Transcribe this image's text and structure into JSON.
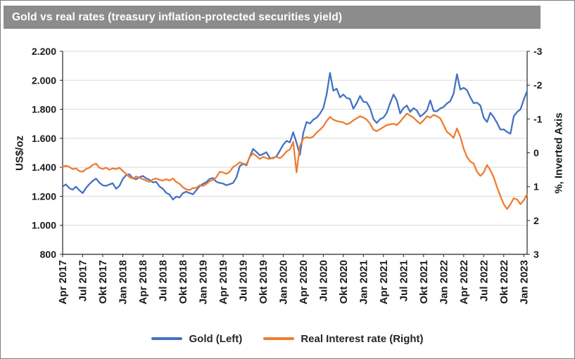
{
  "chart_data": {
    "type": "line",
    "title": "Gold vs real rates (treasury inflation-protected securities yield)",
    "title_bar_color": "#8c8c8c",
    "grid": true,
    "legend": {
      "position": "bottom"
    },
    "left_axis": {
      "label": "US$/oz",
      "min": 800,
      "max": 2200,
      "tick_values": [
        2200,
        2000,
        1800,
        1600,
        1400,
        1200,
        1000,
        800
      ],
      "tick_labels": [
        "2.200",
        "2.000",
        "1.800",
        "1.600",
        "1.400",
        "1.200",
        "1.000",
        "800"
      ]
    },
    "right_axis": {
      "label": "%, Inverted Axis",
      "inverted": true,
      "top_value": -3,
      "bottom_value": 3,
      "tick_values": [
        -3,
        -2,
        -1,
        0,
        1,
        2,
        3
      ],
      "tick_labels": [
        "-3",
        "-2",
        "-1",
        "0",
        "1",
        "2",
        "3"
      ]
    },
    "x_axis": {
      "start": "Apr 2017",
      "end": "Jan 2023",
      "tick_step_months": 3,
      "months_span": 69.5,
      "points_per_month": 2,
      "tick_labels": [
        "Apr 2017",
        "Jul 2017",
        "Okt 2017",
        "Jan 2018",
        "Apr 2018",
        "Jul 2018",
        "Okt 2018",
        "Jan 2019",
        "Apr 2019",
        "Jul 2019",
        "Okt 2019",
        "Jan 2020",
        "Apr 2020",
        "Jul 2020",
        "Okt 2020",
        "Jan 2021",
        "Apr 2021",
        "Jul 2021",
        "Okt 2021",
        "Jan 2022",
        "Apr 2022",
        "Jul 2022",
        "Okt 2022",
        "Jan 2023"
      ]
    },
    "series": [
      {
        "id": "gold",
        "name": "Gold (Left)",
        "axis": "left",
        "color": "#4472C4",
        "values": [
          1268,
          1282,
          1256,
          1246,
          1266,
          1242,
          1222,
          1258,
          1284,
          1306,
          1322,
          1294,
          1276,
          1272,
          1282,
          1290,
          1252,
          1272,
          1320,
          1346,
          1352,
          1324,
          1318,
          1332,
          1340,
          1324,
          1314,
          1296,
          1300,
          1268,
          1252,
          1224,
          1212,
          1178,
          1198,
          1192,
          1222,
          1232,
          1222,
          1214,
          1242,
          1270,
          1286,
          1298,
          1320,
          1326,
          1300,
          1292,
          1288,
          1276,
          1284,
          1292,
          1330,
          1408,
          1424,
          1414,
          1474,
          1526,
          1506,
          1482,
          1492,
          1504,
          1464,
          1462,
          1476,
          1514,
          1556,
          1582,
          1572,
          1642,
          1568,
          1486,
          1636,
          1712,
          1702,
          1728,
          1742,
          1770,
          1808,
          1902,
          2052,
          1928,
          1942,
          1882,
          1902,
          1878,
          1872,
          1804,
          1842,
          1892,
          1852,
          1848,
          1808,
          1732,
          1706,
          1732,
          1742,
          1776,
          1842,
          1902,
          1862,
          1772,
          1808,
          1826,
          1782,
          1808,
          1792,
          1750,
          1768,
          1792,
          1862,
          1788,
          1786,
          1806,
          1816,
          1840,
          1856,
          1908,
          2042,
          1936,
          1948,
          1932,
          1882,
          1842,
          1846,
          1826,
          1742,
          1712,
          1776,
          1746,
          1706,
          1660,
          1662,
          1644,
          1632,
          1752,
          1782,
          1800,
          1868,
          1926
        ]
      },
      {
        "id": "real_rate",
        "name": "Real Interest rate (Right)",
        "axis": "right",
        "color": "#ED7D31",
        "values": [
          0.42,
          0.38,
          0.42,
          0.48,
          0.46,
          0.54,
          0.56,
          0.48,
          0.44,
          0.36,
          0.32,
          0.44,
          0.48,
          0.44,
          0.5,
          0.46,
          0.48,
          0.44,
          0.54,
          0.62,
          0.72,
          0.76,
          0.7,
          0.74,
          0.78,
          0.82,
          0.86,
          0.78,
          0.76,
          0.8,
          0.82,
          0.78,
          0.82,
          0.76,
          0.86,
          0.92,
          1.02,
          1.08,
          1.1,
          1.04,
          1.04,
          0.96,
          0.98,
          0.92,
          0.84,
          0.8,
          0.72,
          0.56,
          0.58,
          0.62,
          0.56,
          0.42,
          0.36,
          0.28,
          0.32,
          0.34,
          0.12,
          0.02,
          0.1,
          0.18,
          0.12,
          0.16,
          0.18,
          0.14,
          0.12,
          0.16,
          0.08,
          -0.04,
          -0.1,
          -0.32,
          0.58,
          -0.2,
          -0.42,
          -0.46,
          -0.44,
          -0.48,
          -0.6,
          -0.68,
          -0.78,
          -0.94,
          -1.06,
          -0.98,
          -0.94,
          -0.92,
          -0.9,
          -0.84,
          -0.88,
          -0.96,
          -1.02,
          -1.08,
          -1.04,
          -0.98,
          -0.86,
          -0.68,
          -0.64,
          -0.7,
          -0.76,
          -0.82,
          -0.84,
          -0.86,
          -0.82,
          -0.92,
          -1.04,
          -1.16,
          -1.1,
          -1.04,
          -0.94,
          -0.86,
          -0.96,
          -1.08,
          -1.04,
          -1.12,
          -1.08,
          -1.02,
          -0.82,
          -0.62,
          -0.54,
          -0.44,
          -0.72,
          -0.48,
          -0.12,
          0.12,
          0.26,
          0.32,
          0.56,
          0.68,
          0.58,
          0.36,
          0.52,
          0.72,
          1.02,
          1.28,
          1.52,
          1.66,
          1.52,
          1.34,
          1.38,
          1.52,
          1.4,
          1.22
        ]
      }
    ]
  }
}
